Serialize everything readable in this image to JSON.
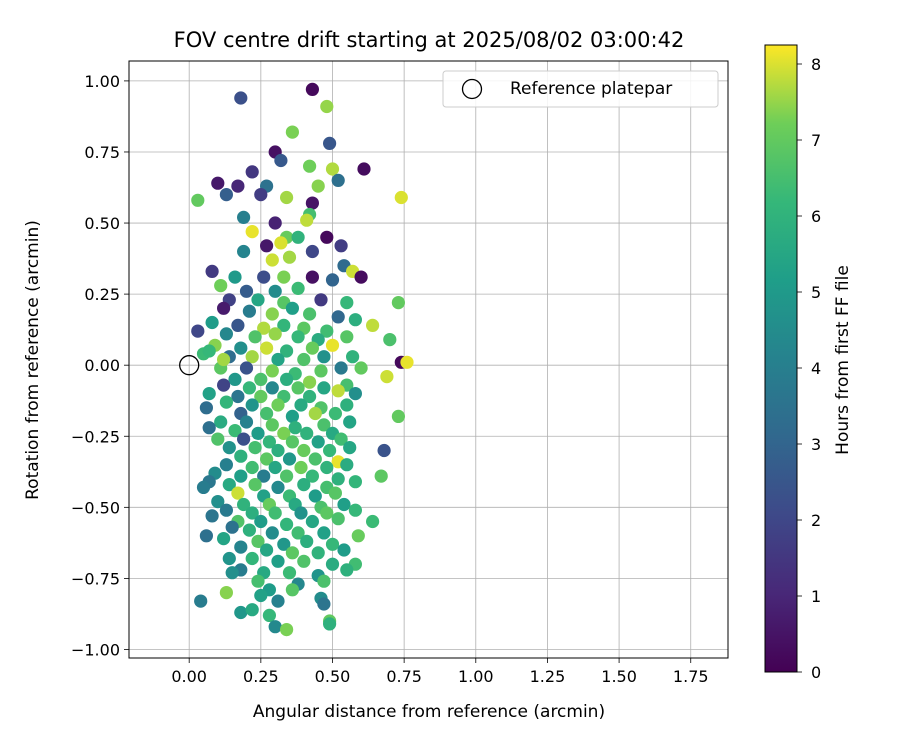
{
  "chart_data": {
    "type": "scatter",
    "title": "FOV centre drift starting at 2025/08/02 03:00:42",
    "xlabel": "Angular distance from reference (arcmin)",
    "ylabel": "Rotation from reference (arcmin)",
    "xlim": [
      -0.21,
      1.88
    ],
    "ylim": [
      -1.03,
      1.07
    ],
    "x_ticks": [
      "0.00",
      "0.25",
      "0.50",
      "0.75",
      "1.00",
      "1.25",
      "1.50",
      "1.75"
    ],
    "y_ticks": [
      "−1.00",
      "−0.75",
      "−0.50",
      "−0.25",
      "0.00",
      "0.25",
      "0.50",
      "0.75",
      "1.00"
    ],
    "grid": true,
    "legend": {
      "placement": "top-right",
      "entries": [
        "Reference platepar"
      ]
    },
    "reference_point": {
      "x": 0.0,
      "y": 0.0,
      "marker": "open-circle"
    },
    "colorbar": {
      "label": "Hours from first FF file",
      "colormap": "viridis",
      "range": [
        0,
        8.25
      ],
      "ticks": [
        "0",
        "1",
        "2",
        "3",
        "4",
        "5",
        "6",
        "7",
        "8"
      ]
    },
    "points": [
      [
        0.43,
        0.97,
        0.2
      ],
      [
        0.18,
        0.94,
        2.3
      ],
      [
        0.48,
        0.91,
        7.5
      ],
      [
        0.36,
        0.82,
        7.3
      ],
      [
        0.49,
        0.78,
        2.5
      ],
      [
        0.3,
        0.75,
        0.4
      ],
      [
        0.32,
        0.72,
        2.6
      ],
      [
        0.61,
        0.69,
        0.3
      ],
      [
        0.42,
        0.7,
        7.2
      ],
      [
        0.5,
        0.69,
        7.7
      ],
      [
        0.22,
        0.68,
        1.5
      ],
      [
        0.1,
        0.64,
        0.6
      ],
      [
        0.17,
        0.63,
        1.0
      ],
      [
        0.27,
        0.63,
        3.5
      ],
      [
        0.45,
        0.63,
        7.4
      ],
      [
        0.52,
        0.65,
        3.4
      ],
      [
        0.03,
        0.58,
        7.0
      ],
      [
        0.13,
        0.6,
        2.8
      ],
      [
        0.25,
        0.6,
        1.7
      ],
      [
        0.34,
        0.59,
        7.6
      ],
      [
        0.43,
        0.57,
        0.5
      ],
      [
        0.74,
        0.59,
        8.0
      ],
      [
        0.19,
        0.52,
        4.0
      ],
      [
        0.3,
        0.5,
        0.9
      ],
      [
        0.42,
        0.53,
        6.5
      ],
      [
        0.41,
        0.51,
        7.8
      ],
      [
        0.22,
        0.47,
        8.1
      ],
      [
        0.34,
        0.45,
        7.1
      ],
      [
        0.38,
        0.45,
        6.0
      ],
      [
        0.48,
        0.45,
        0.2
      ],
      [
        0.27,
        0.42,
        0.6
      ],
      [
        0.32,
        0.43,
        8.0
      ],
      [
        0.43,
        0.4,
        2.0
      ],
      [
        0.53,
        0.42,
        1.7
      ],
      [
        0.19,
        0.4,
        4.2
      ],
      [
        0.29,
        0.37,
        7.9
      ],
      [
        0.35,
        0.38,
        7.6
      ],
      [
        0.54,
        0.35,
        3.2
      ],
      [
        0.57,
        0.33,
        7.9
      ],
      [
        0.6,
        0.31,
        0.3
      ],
      [
        0.08,
        0.33,
        1.6
      ],
      [
        0.16,
        0.31,
        5.0
      ],
      [
        0.26,
        0.31,
        2.2
      ],
      [
        0.33,
        0.31,
        7.3
      ],
      [
        0.43,
        0.31,
        0.4
      ],
      [
        0.5,
        0.3,
        3.0
      ],
      [
        0.11,
        0.28,
        7.2
      ],
      [
        0.2,
        0.26,
        2.7
      ],
      [
        0.3,
        0.26,
        4.5
      ],
      [
        0.38,
        0.27,
        6.3
      ],
      [
        0.14,
        0.23,
        1.8
      ],
      [
        0.24,
        0.23,
        5.5
      ],
      [
        0.33,
        0.22,
        6.8
      ],
      [
        0.46,
        0.23,
        1.6
      ],
      [
        0.55,
        0.22,
        6.2
      ],
      [
        0.73,
        0.22,
        7.0
      ],
      [
        0.12,
        0.2,
        0.7
      ],
      [
        0.21,
        0.19,
        3.9
      ],
      [
        0.29,
        0.18,
        7.4
      ],
      [
        0.36,
        0.2,
        5.2
      ],
      [
        0.42,
        0.18,
        6.6
      ],
      [
        0.52,
        0.17,
        3.1
      ],
      [
        0.58,
        0.16,
        5.8
      ],
      [
        0.08,
        0.15,
        5.1
      ],
      [
        0.17,
        0.14,
        2.5
      ],
      [
        0.26,
        0.13,
        7.7
      ],
      [
        0.33,
        0.14,
        6.1
      ],
      [
        0.4,
        0.13,
        6.9
      ],
      [
        0.48,
        0.12,
        6.4
      ],
      [
        0.64,
        0.14,
        7.8
      ],
      [
        0.03,
        0.12,
        2.0
      ],
      [
        0.13,
        0.11,
        4.3
      ],
      [
        0.23,
        0.1,
        6.7
      ],
      [
        0.3,
        0.11,
        7.5
      ],
      [
        0.38,
        0.1,
        6.2
      ],
      [
        0.45,
        0.09,
        5.7
      ],
      [
        0.55,
        0.1,
        6.8
      ],
      [
        0.7,
        0.09,
        6.6
      ],
      [
        0.09,
        0.07,
        7.4
      ],
      [
        0.18,
        0.06,
        4.6
      ],
      [
        0.27,
        0.06,
        7.9
      ],
      [
        0.34,
        0.05,
        6.0
      ],
      [
        0.43,
        0.06,
        7.1
      ],
      [
        0.5,
        0.07,
        8.1
      ],
      [
        0.05,
        0.04,
        6.3
      ],
      [
        0.14,
        0.03,
        3.3
      ],
      [
        0.22,
        0.03,
        7.6
      ],
      [
        0.31,
        0.02,
        5.4
      ],
      [
        0.4,
        0.02,
        6.7
      ],
      [
        0.47,
        0.03,
        4.7
      ],
      [
        0.57,
        0.03,
        6.0
      ],
      [
        0.74,
        0.01,
        0.2
      ],
      [
        0.76,
        0.01,
        8.1
      ],
      [
        0.11,
        -0.01,
        6.9
      ],
      [
        0.2,
        -0.01,
        2.4
      ],
      [
        0.29,
        -0.02,
        7.3
      ],
      [
        0.37,
        -0.03,
        6.3
      ],
      [
        0.46,
        -0.02,
        6.9
      ],
      [
        0.53,
        -0.01,
        3.8
      ],
      [
        0.6,
        -0.01,
        7.0
      ],
      [
        0.16,
        -0.05,
        4.9
      ],
      [
        0.25,
        -0.05,
        6.6
      ],
      [
        0.34,
        -0.05,
        5.8
      ],
      [
        0.42,
        -0.06,
        7.4
      ],
      [
        0.69,
        -0.04,
        7.9
      ],
      [
        0.12,
        -0.07,
        1.9
      ],
      [
        0.21,
        -0.08,
        6.2
      ],
      [
        0.29,
        -0.08,
        4.3
      ],
      [
        0.38,
        -0.08,
        6.8
      ],
      [
        0.47,
        -0.08,
        5.5
      ],
      [
        0.55,
        -0.07,
        6.5
      ],
      [
        0.07,
        -0.1,
        5.3
      ],
      [
        0.17,
        -0.11,
        3.6
      ],
      [
        0.25,
        -0.11,
        7.0
      ],
      [
        0.33,
        -0.11,
        6.4
      ],
      [
        0.42,
        -0.11,
        6.0
      ],
      [
        0.52,
        -0.09,
        7.8
      ],
      [
        0.58,
        -0.1,
        4.6
      ],
      [
        0.13,
        -0.13,
        6.1
      ],
      [
        0.22,
        -0.14,
        4.8
      ],
      [
        0.31,
        -0.14,
        7.2
      ],
      [
        0.39,
        -0.14,
        5.6
      ],
      [
        0.46,
        -0.15,
        6.7
      ],
      [
        0.55,
        -0.14,
        5.9
      ],
      [
        0.06,
        -0.15,
        3.3
      ],
      [
        0.18,
        -0.17,
        2.9
      ],
      [
        0.27,
        -0.17,
        6.5
      ],
      [
        0.36,
        -0.18,
        5.2
      ],
      [
        0.44,
        -0.17,
        7.6
      ],
      [
        0.51,
        -0.17,
        6.3
      ],
      [
        0.73,
        -0.18,
        7.0
      ],
      [
        0.11,
        -0.2,
        5.7
      ],
      [
        0.2,
        -0.2,
        4.1
      ],
      [
        0.29,
        -0.21,
        6.9
      ],
      [
        0.37,
        -0.22,
        5.9
      ],
      [
        0.47,
        -0.21,
        6.6
      ],
      [
        0.56,
        -0.2,
        5.4
      ],
      [
        0.07,
        -0.22,
        3.4
      ],
      [
        0.16,
        -0.23,
        6.3
      ],
      [
        0.24,
        -0.24,
        5.1
      ],
      [
        0.33,
        -0.24,
        7.3
      ],
      [
        0.41,
        -0.24,
        6.0
      ],
      [
        0.5,
        -0.24,
        5.6
      ],
      [
        0.1,
        -0.26,
        6.7
      ],
      [
        0.19,
        -0.26,
        2.3
      ],
      [
        0.28,
        -0.27,
        6.1
      ],
      [
        0.36,
        -0.27,
        6.8
      ],
      [
        0.45,
        -0.27,
        5.3
      ],
      [
        0.53,
        -0.26,
        6.4
      ],
      [
        0.14,
        -0.29,
        4.7
      ],
      [
        0.23,
        -0.29,
        6.5
      ],
      [
        0.31,
        -0.3,
        5.8
      ],
      [
        0.4,
        -0.3,
        7.1
      ],
      [
        0.49,
        -0.3,
        6.2
      ],
      [
        0.56,
        -0.29,
        5.5
      ],
      [
        0.68,
        -0.3,
        2.4
      ],
      [
        0.18,
        -0.32,
        5.9
      ],
      [
        0.27,
        -0.33,
        6.9
      ],
      [
        0.35,
        -0.33,
        4.9
      ],
      [
        0.44,
        -0.33,
        6.6
      ],
      [
        0.52,
        -0.34,
        8.1
      ],
      [
        0.13,
        -0.35,
        4.0
      ],
      [
        0.22,
        -0.36,
        6.4
      ],
      [
        0.3,
        -0.36,
        5.5
      ],
      [
        0.39,
        -0.36,
        7.2
      ],
      [
        0.48,
        -0.36,
        6.0
      ],
      [
        0.55,
        -0.35,
        5.7
      ],
      [
        0.09,
        -0.38,
        4.5
      ],
      [
        0.18,
        -0.39,
        5.2
      ],
      [
        0.26,
        -0.39,
        3.9
      ],
      [
        0.34,
        -0.39,
        6.7
      ],
      [
        0.43,
        -0.39,
        6.2
      ],
      [
        0.52,
        -0.4,
        5.9
      ],
      [
        0.07,
        -0.41,
        3.7
      ],
      [
        0.14,
        -0.42,
        5.6
      ],
      [
        0.23,
        -0.42,
        6.8
      ],
      [
        0.31,
        -0.43,
        4.4
      ],
      [
        0.4,
        -0.42,
        5.8
      ],
      [
        0.48,
        -0.43,
        6.5
      ],
      [
        0.58,
        -0.41,
        6.1
      ],
      [
        0.67,
        -0.39,
        6.9
      ],
      [
        0.05,
        -0.43,
        3.9
      ],
      [
        0.17,
        -0.45,
        7.9
      ],
      [
        0.26,
        -0.46,
        5.3
      ],
      [
        0.35,
        -0.46,
        6.3
      ],
      [
        0.44,
        -0.46,
        5.1
      ],
      [
        0.51,
        -0.45,
        6.8
      ],
      [
        0.1,
        -0.48,
        4.6
      ],
      [
        0.19,
        -0.49,
        6.0
      ],
      [
        0.28,
        -0.49,
        7.1
      ],
      [
        0.37,
        -0.49,
        5.6
      ],
      [
        0.46,
        -0.5,
        6.6
      ],
      [
        0.54,
        -0.49,
        5.2
      ],
      [
        0.13,
        -0.51,
        3.8
      ],
      [
        0.22,
        -0.52,
        5.8
      ],
      [
        0.3,
        -0.52,
        6.4
      ],
      [
        0.39,
        -0.52,
        4.7
      ],
      [
        0.48,
        -0.52,
        6.9
      ],
      [
        0.58,
        -0.51,
        6.2
      ],
      [
        0.08,
        -0.53,
        3.6
      ],
      [
        0.17,
        -0.55,
        6.7
      ],
      [
        0.25,
        -0.55,
        5.1
      ],
      [
        0.34,
        -0.56,
        6.1
      ],
      [
        0.43,
        -0.55,
        5.5
      ],
      [
        0.52,
        -0.54,
        6.6
      ],
      [
        0.64,
        -0.55,
        6.3
      ],
      [
        0.15,
        -0.57,
        3.5
      ],
      [
        0.21,
        -0.58,
        5.9
      ],
      [
        0.29,
        -0.59,
        4.5
      ],
      [
        0.38,
        -0.59,
        6.4
      ],
      [
        0.47,
        -0.59,
        5.3
      ],
      [
        0.59,
        -0.6,
        7.1
      ],
      [
        0.06,
        -0.6,
        3.4
      ],
      [
        0.12,
        -0.61,
        5.4
      ],
      [
        0.24,
        -0.62,
        6.8
      ],
      [
        0.33,
        -0.63,
        4.9
      ],
      [
        0.41,
        -0.62,
        5.8
      ],
      [
        0.5,
        -0.63,
        6.2
      ],
      [
        0.18,
        -0.64,
        4.2
      ],
      [
        0.27,
        -0.65,
        5.5
      ],
      [
        0.36,
        -0.66,
        6.9
      ],
      [
        0.45,
        -0.66,
        6.0
      ],
      [
        0.54,
        -0.65,
        5.1
      ],
      [
        0.14,
        -0.68,
        4.8
      ],
      [
        0.22,
        -0.68,
        6.1
      ],
      [
        0.31,
        -0.69,
        5.2
      ],
      [
        0.4,
        -0.69,
        6.7
      ],
      [
        0.5,
        -0.7,
        5.7
      ],
      [
        0.58,
        -0.7,
        6.4
      ],
      [
        0.18,
        -0.72,
        3.9
      ],
      [
        0.26,
        -0.73,
        5.6
      ],
      [
        0.35,
        -0.73,
        6.3
      ],
      [
        0.45,
        -0.74,
        4.8
      ],
      [
        0.55,
        -0.72,
        5.9
      ],
      [
        0.15,
        -0.73,
        4.6
      ],
      [
        0.24,
        -0.76,
        6.5
      ],
      [
        0.38,
        -0.77,
        4.3
      ],
      [
        0.47,
        -0.76,
        6.6
      ],
      [
        0.28,
        -0.79,
        5.1
      ],
      [
        0.36,
        -0.79,
        6.8
      ],
      [
        0.04,
        -0.83,
        3.9
      ],
      [
        0.13,
        -0.8,
        7.4
      ],
      [
        0.25,
        -0.81,
        5.3
      ],
      [
        0.31,
        -0.83,
        4.1
      ],
      [
        0.46,
        -0.82,
        4.5
      ],
      [
        0.18,
        -0.87,
        4.9
      ],
      [
        0.22,
        -0.86,
        5.6
      ],
      [
        0.28,
        -0.88,
        6.2
      ],
      [
        0.47,
        -0.84,
        3.6
      ],
      [
        0.49,
        -0.9,
        7.0
      ],
      [
        0.3,
        -0.92,
        4.4
      ],
      [
        0.34,
        -0.93,
        7.3
      ],
      [
        0.49,
        -0.91,
        5.9
      ],
      [
        0.07,
        0.05,
        6.2
      ],
      [
        0.12,
        0.02,
        7.6
      ]
    ]
  }
}
